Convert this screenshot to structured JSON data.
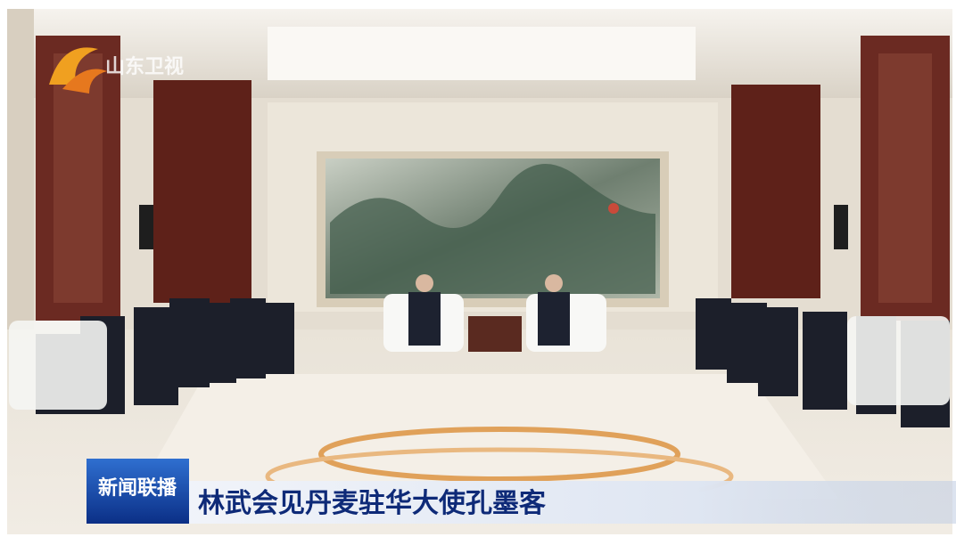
{
  "logo": {
    "text": "山东卫视"
  },
  "caption": {
    "badge": "新闻联播",
    "text": "林武会见丹麦驻华大使孔墨客"
  }
}
